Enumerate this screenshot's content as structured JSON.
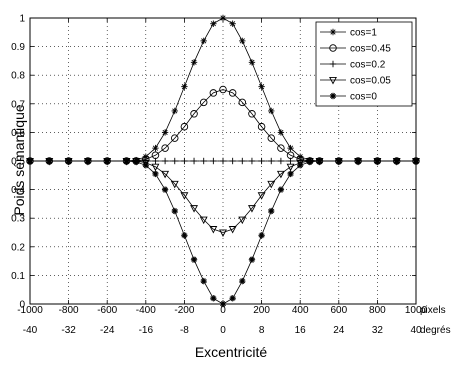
{
  "chart_data": {
    "type": "line",
    "xlabel": "Excentricité",
    "ylabel": "Poids sémantique",
    "xlim": [
      -1000,
      1000
    ],
    "ylim": [
      0,
      1
    ],
    "grid": true,
    "legend_position": "top-right",
    "x_ticks": [
      "-1000",
      "-800",
      "-600",
      "-400",
      "-200",
      "0",
      "200",
      "400",
      "600",
      "800",
      "1000"
    ],
    "x_ticks_unit": "pixels",
    "x2_ticks": [
      "-40",
      "-32",
      "-24",
      "-16",
      "-8",
      "0",
      "8",
      "16",
      "24",
      "32",
      "40"
    ],
    "x2_ticks_unit": "degrés",
    "y_ticks": [
      "0",
      "0.1",
      "0.2",
      "0.3",
      "0.4",
      "0.5",
      "0.6",
      "0.7",
      "0.8",
      "0.9",
      "1"
    ],
    "x": [
      -1000,
      -900,
      -800,
      -700,
      -600,
      -500,
      -450,
      -400,
      -350,
      -300,
      -250,
      -200,
      -150,
      -100,
      -50,
      0,
      50,
      100,
      150,
      200,
      250,
      300,
      350,
      400,
      450,
      500,
      600,
      700,
      800,
      900,
      1000
    ],
    "series": [
      {
        "name": "cos=1",
        "marker": "asterisk",
        "values": [
          0.5,
          0.5,
          0.5,
          0.5,
          0.5,
          0.5,
          0.503,
          0.515,
          0.545,
          0.6,
          0.675,
          0.76,
          0.845,
          0.92,
          0.98,
          1.0,
          0.98,
          0.92,
          0.845,
          0.76,
          0.675,
          0.6,
          0.545,
          0.515,
          0.503,
          0.5,
          0.5,
          0.5,
          0.5,
          0.5,
          0.5
        ]
      },
      {
        "name": "cos=0.45",
        "marker": "circle",
        "values": [
          0.5,
          0.5,
          0.5,
          0.5,
          0.5,
          0.5,
          0.5,
          0.506,
          0.52,
          0.545,
          0.58,
          0.62,
          0.665,
          0.705,
          0.738,
          0.75,
          0.738,
          0.705,
          0.665,
          0.62,
          0.58,
          0.545,
          0.52,
          0.506,
          0.5,
          0.5,
          0.5,
          0.5,
          0.5,
          0.5,
          0.5
        ]
      },
      {
        "name": "cos=0.2",
        "marker": "plus",
        "values": [
          0.5,
          0.5,
          0.5,
          0.5,
          0.5,
          0.5,
          0.5,
          0.5,
          0.5,
          0.5,
          0.5,
          0.5,
          0.5,
          0.5,
          0.5,
          0.5,
          0.5,
          0.5,
          0.5,
          0.5,
          0.5,
          0.5,
          0.5,
          0.5,
          0.5,
          0.5,
          0.5,
          0.5,
          0.5,
          0.5,
          0.5
        ]
      },
      {
        "name": "cos=0.05",
        "marker": "triangle-down",
        "values": [
          0.5,
          0.5,
          0.5,
          0.5,
          0.5,
          0.5,
          0.5,
          0.494,
          0.48,
          0.455,
          0.42,
          0.38,
          0.335,
          0.295,
          0.262,
          0.25,
          0.262,
          0.295,
          0.335,
          0.38,
          0.42,
          0.455,
          0.48,
          0.494,
          0.5,
          0.5,
          0.5,
          0.5,
          0.5,
          0.5,
          0.5
        ]
      },
      {
        "name": "cos=0",
        "marker": "star",
        "values": [
          0.5,
          0.5,
          0.5,
          0.5,
          0.5,
          0.5,
          0.497,
          0.485,
          0.455,
          0.4,
          0.325,
          0.24,
          0.155,
          0.08,
          0.02,
          0.0,
          0.02,
          0.08,
          0.155,
          0.24,
          0.325,
          0.4,
          0.455,
          0.485,
          0.497,
          0.5,
          0.5,
          0.5,
          0.5,
          0.5,
          0.5
        ]
      }
    ]
  }
}
